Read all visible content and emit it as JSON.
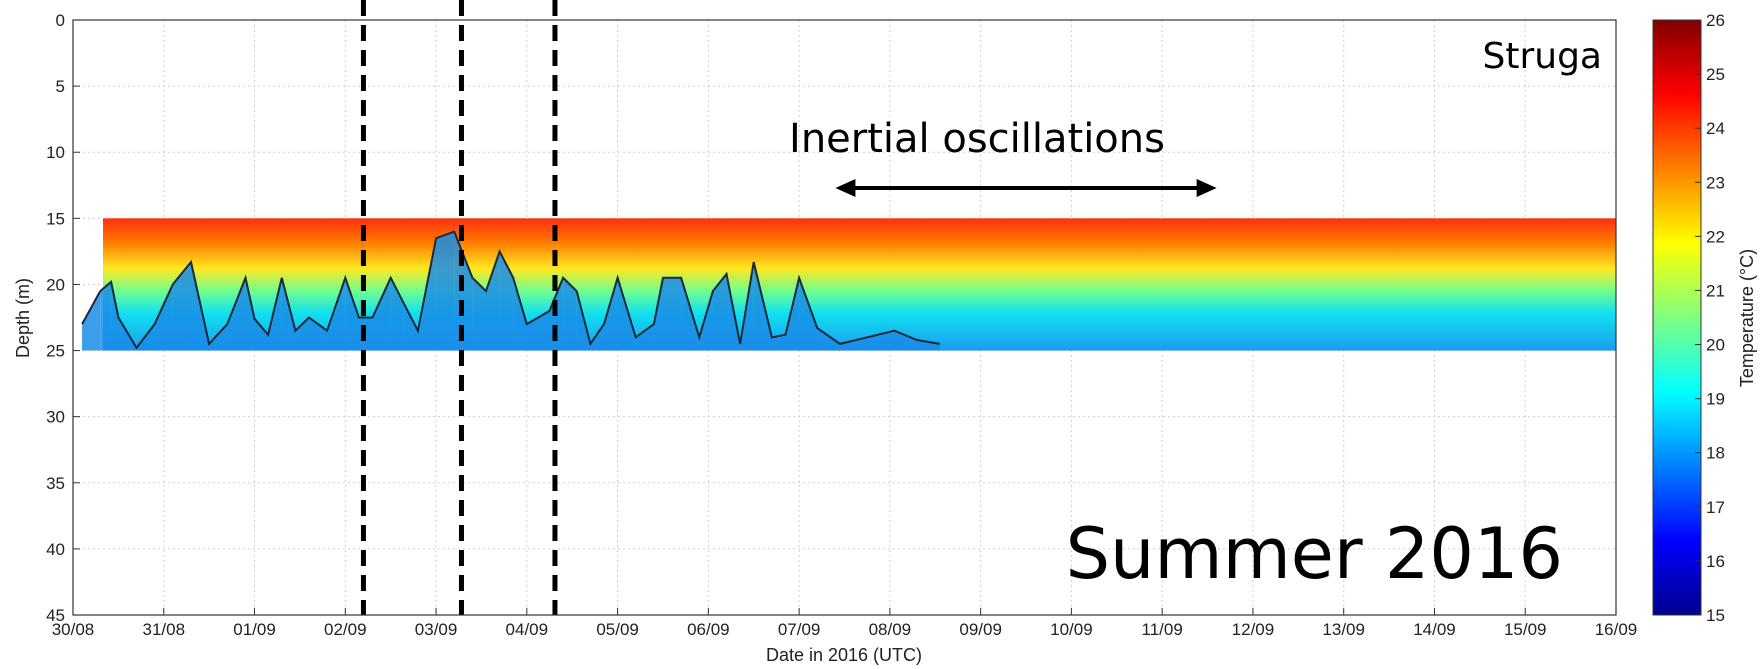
{
  "chart_data": {
    "type": "heatmap",
    "title": "",
    "xlabel": "Date in 2016 (UTC)",
    "ylabel": "Depth (m)",
    "colorbar_label": "Temperature (°C)",
    "x_ticks": [
      "30/08",
      "31/08",
      "01/09",
      "02/09",
      "03/09",
      "04/09",
      "05/09",
      "06/09",
      "07/09",
      "08/09",
      "09/09",
      "10/09",
      "11/09",
      "12/09",
      "13/09",
      "14/09",
      "15/09",
      "16/09"
    ],
    "x_range_days": [
      0,
      17
    ],
    "y_ticks": [
      0,
      5,
      10,
      15,
      20,
      25,
      30,
      35,
      40,
      45
    ],
    "ylim": [
      45,
      0
    ],
    "data_depth_range": [
      15,
      25
    ],
    "colorbar_ticks": [
      15,
      16,
      17,
      18,
      19,
      20,
      21,
      22,
      23,
      24,
      25,
      26
    ],
    "colorbar_range": [
      15,
      26
    ],
    "colormap": [
      "#00008f",
      "#0000ff",
      "#0080ff",
      "#00ffff",
      "#80ff80",
      "#ffff00",
      "#ff8000",
      "#ff0000",
      "#800000"
    ],
    "isotherm_depth_m": {
      "x_day": [
        0.1,
        0.3,
        0.42,
        0.5,
        0.7,
        0.9,
        1.1,
        1.3,
        1.5,
        1.7,
        1.9,
        2.0,
        2.15,
        2.3,
        2.45,
        2.6,
        2.8,
        3.0,
        3.15,
        3.3,
        3.5,
        3.65,
        3.8,
        4.0,
        4.2,
        4.4,
        4.55,
        4.7,
        4.85,
        5.0,
        5.25,
        5.4,
        5.55,
        5.7,
        5.85,
        6.0,
        6.2,
        6.4,
        6.5,
        6.7,
        6.9,
        7.05,
        7.2,
        7.35,
        7.5,
        7.7,
        7.85,
        8.0,
        8.2,
        8.45,
        8.75,
        9.05,
        9.3,
        9.55
      ],
      "depth": [
        23,
        20.5,
        19.8,
        22.5,
        24.8,
        23,
        20,
        18.3,
        24.5,
        23,
        19.5,
        22.6,
        23.8,
        19.5,
        23.5,
        22.5,
        23.5,
        19.5,
        22.5,
        22.5,
        19.5,
        21.5,
        23.5,
        16.5,
        16,
        19.5,
        20.5,
        17.5,
        19.5,
        23,
        22,
        19.5,
        20.5,
        24.5,
        23,
        19.5,
        24,
        23,
        19.5,
        19.5,
        24,
        20.5,
        19.2,
        24.5,
        18.3,
        24,
        23.8,
        19.5,
        23.3,
        24.5,
        24,
        23.5,
        24.2,
        24.5
      ]
    },
    "event_lines_day": [
      3.2,
      4.28,
      5.31
    ],
    "annotations": {
      "site": "Struga",
      "arrow_label": "Inertial oscillations",
      "arrow_range_day": [
        8.4,
        12.6
      ],
      "season": "Summer 2016"
    }
  }
}
